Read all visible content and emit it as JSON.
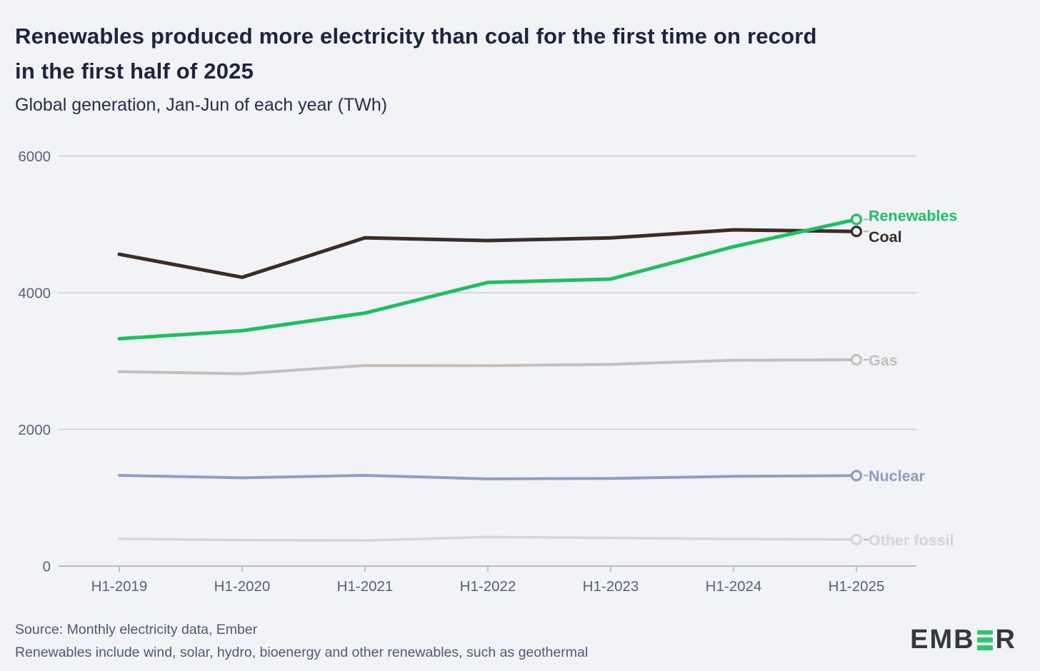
{
  "header": {
    "title_line1": "Renewables produced more electricity than coal for the first time on record",
    "title_line2": "in the first half of 2025",
    "subtitle": "Global generation, Jan-Jun of each year (TWh)"
  },
  "footer": {
    "source": "Source: Monthly electricity data, Ember",
    "note": "Renewables include wind, solar, hydro, bioenergy and other renewables, such as geothermal",
    "logo_text_start": "EMB",
    "logo_text_end": "R"
  },
  "theme": {
    "background": "#f1f3f7",
    "title_color": "#1b2440",
    "subtitle_color": "#232f4d",
    "axis_label_color": "#58627a",
    "gridline_color": "#c9cdd6",
    "axis_line_color": "#b3b9c6",
    "tick_color": "#a9b0bc",
    "footer_color": "#4e5b73",
    "logo_dark": "#35393f",
    "logo_green": "#2dc86d",
    "connector_color": "#b5b0ad"
  },
  "chart_data": {
    "type": "line",
    "title": "Renewables produced more electricity than coal for the first time on record in the first half of 2025",
    "subtitle": "Global generation, Jan-Jun of each year (TWh)",
    "xlabel": "",
    "ylabel": "TWh",
    "categories": [
      "H1-2019",
      "H1-2020",
      "H1-2021",
      "H1-2022",
      "H1-2023",
      "H1-2024",
      "H1-2025"
    ],
    "series": [
      {
        "name": "Other fossil",
        "color": "#d6d4d8",
        "values": [
          399,
          380,
          375,
          425,
          412,
          396,
          388
        ]
      },
      {
        "name": "Nuclear",
        "color": "#8e9dc3",
        "values": [
          1327,
          1291,
          1327,
          1276,
          1282,
          1313,
          1324
        ]
      },
      {
        "name": "Gas",
        "color": "#c5beba",
        "values": [
          2844,
          2815,
          2935,
          2932,
          2951,
          3012,
          3018
        ]
      },
      {
        "name": "Coal",
        "color": "#3b2d26",
        "values": [
          4562,
          4225,
          4803,
          4762,
          4801,
          4919,
          4896
        ]
      },
      {
        "name": "Renewables",
        "color": "#1fbf5f",
        "values": [
          3326,
          3444,
          3702,
          4150,
          4199,
          4673,
          5072
        ]
      }
    ],
    "ylim": [
      0,
      6000
    ],
    "yticks": [
      0,
      2000,
      4000,
      6000
    ],
    "grid": true,
    "legend_position": "end-of-line-labels"
  }
}
